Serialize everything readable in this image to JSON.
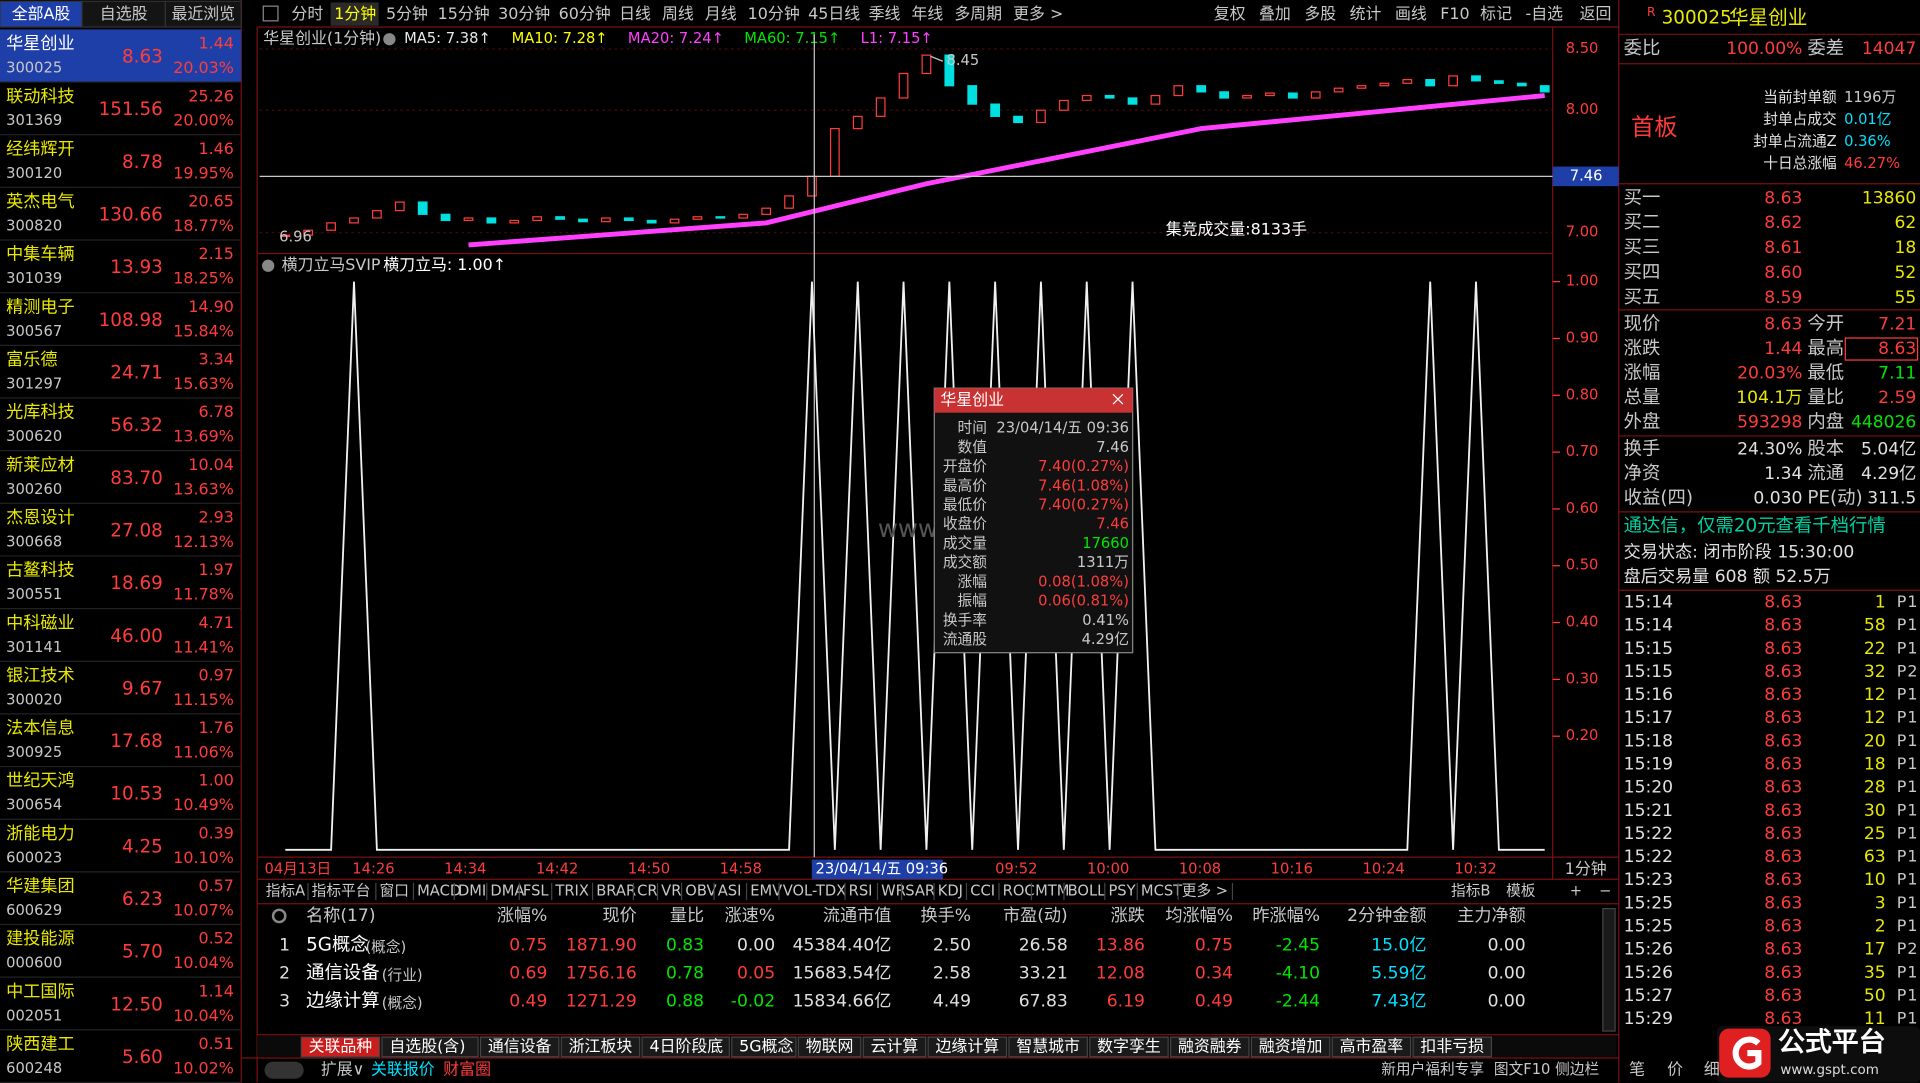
{
  "stock_list": {
    "tabs": [
      "全部A股",
      "自选股",
      "最近浏览"
    ],
    "rows": [
      {
        "name": "华星创业",
        "code": "300025",
        "price": "8.63",
        "change": "1.44",
        "pct": "20.03%"
      },
      {
        "name": "联动科技",
        "code": "301369",
        "price": "151.56",
        "change": "25.26",
        "pct": "20.00%"
      },
      {
        "name": "经纬辉开",
        "code": "300120",
        "price": "8.78",
        "change": "1.46",
        "pct": "19.95%"
      },
      {
        "name": "英杰电气",
        "code": "300820",
        "price": "130.66",
        "change": "20.65",
        "pct": "18.77%"
      },
      {
        "name": "中集车辆",
        "code": "301039",
        "price": "13.93",
        "change": "2.15",
        "pct": "18.25%"
      },
      {
        "name": "精测电子",
        "code": "300567",
        "price": "108.98",
        "change": "14.90",
        "pct": "15.84%"
      },
      {
        "name": "富乐德",
        "code": "301297",
        "price": "24.71",
        "change": "3.34",
        "pct": "15.63%"
      },
      {
        "name": "光库科技",
        "code": "300620",
        "price": "56.32",
        "change": "6.78",
        "pct": "13.69%"
      },
      {
        "name": "新莱应材",
        "code": "300260",
        "price": "83.70",
        "change": "10.04",
        "pct": "13.63%"
      },
      {
        "name": "杰恩设计",
        "code": "300668",
        "price": "27.08",
        "change": "2.93",
        "pct": "12.13%"
      },
      {
        "name": "古鳌科技",
        "code": "300551",
        "price": "18.69",
        "change": "1.97",
        "pct": "11.78%"
      },
      {
        "name": "中科磁业",
        "code": "301141",
        "price": "46.00",
        "change": "4.71",
        "pct": "11.41%"
      },
      {
        "name": "银江技术",
        "code": "300020",
        "price": "9.67",
        "change": "0.97",
        "pct": "11.15%"
      },
      {
        "name": "法本信息",
        "code": "300925",
        "price": "17.68",
        "change": "1.76",
        "pct": "11.06%"
      },
      {
        "name": "世纪天鸿",
        "code": "300654",
        "price": "10.53",
        "change": "1.00",
        "pct": "10.49%"
      },
      {
        "name": "浙能电力",
        "code": "600023",
        "price": "4.25",
        "change": "0.39",
        "pct": "10.10%"
      },
      {
        "name": "华建集团",
        "code": "600629",
        "price": "6.23",
        "change": "0.57",
        "pct": "10.07%"
      },
      {
        "name": "建投能源",
        "code": "000600",
        "price": "5.70",
        "change": "0.52",
        "pct": "10.04%"
      },
      {
        "name": "中工国际",
        "code": "002051",
        "price": "12.50",
        "change": "1.14",
        "pct": "10.04%"
      },
      {
        "name": "陕西建工",
        "code": "600248",
        "price": "5.60",
        "change": "0.51",
        "pct": "10.02%"
      }
    ]
  },
  "toolbar": {
    "periods": [
      "分时",
      "1分钟",
      "5分钟",
      "15分钟",
      "30分钟",
      "60分钟",
      "日线",
      "周线",
      "月线",
      "10分钟",
      "45日线",
      "季线",
      "年线",
      "多周期",
      "更多 >"
    ],
    "tools": [
      "复权",
      "叠加",
      "多股",
      "统计",
      "画线",
      "F10",
      "标记",
      "-自选",
      "返回"
    ]
  },
  "price_chart": {
    "title": "华星创业(1分钟)",
    "indicators": [
      {
        "text": "MA5: 7.38↑",
        "color": "#e8e8e8"
      },
      {
        "text": "MA10: 7.28↑",
        "color": "#ffff00"
      },
      {
        "text": "MA20: 7.24↑",
        "color": "#ff40ff"
      },
      {
        "text": "MA60: 7.15↑",
        "color": "#00e600"
      },
      {
        "text": "L1: 7.15↑",
        "color": "#ff40ff"
      }
    ],
    "ylim": [
      6.85,
      8.62
    ],
    "yticks": [
      {
        "value": 7,
        "label": "7.00"
      },
      {
        "value": 8,
        "label": "8.00"
      },
      {
        "value": 8.5,
        "label": "8.50"
      }
    ],
    "closes": [
      6.98,
      7.02,
      7.08,
      7.12,
      7.18,
      7.25,
      7.15,
      7.1,
      7.12,
      7.08,
      7.1,
      7.13,
      7.11,
      7.09,
      7.12,
      7.1,
      7.08,
      7.11,
      7.13,
      7.12,
      7.15,
      7.2,
      7.3,
      7.46,
      7.85,
      7.95,
      8.1,
      8.3,
      8.45,
      8.2,
      8.05,
      7.95,
      7.9,
      8.0,
      8.08,
      8.12,
      8.1,
      8.05,
      8.12,
      8.2,
      8.15,
      8.1,
      8.12,
      8.14,
      8.1,
      8.15,
      8.18,
      8.2,
      8.22,
      8.25,
      8.2,
      8.28,
      8.24,
      8.22,
      8.2,
      8.15
    ],
    "l1": {
      "x": [
        8,
        21,
        28,
        40,
        55
      ],
      "values": [
        6.9,
        7.08,
        7.4,
        7.85,
        8.12
      ]
    },
    "high_label": "8.45",
    "low_label": "6.96",
    "auction_volume": "集竞成交量:8133手",
    "crosshair_price": 7.46
  },
  "indicator_chart": {
    "name": "横刀立马SVIP",
    "value_text": "横刀立马: 1.00↑",
    "ylim": [
      0,
      1
    ],
    "yticks": [
      {
        "value": 0.2,
        "label": "0.20"
      },
      {
        "value": 0.3,
        "label": "0.30"
      },
      {
        "value": 0.4,
        "label": "0.40"
      },
      {
        "value": 0.5,
        "label": "0.50"
      },
      {
        "value": 0.6,
        "label": "0.60"
      },
      {
        "value": 0.7,
        "label": "0.70"
      },
      {
        "value": 0.8,
        "label": "0.80"
      },
      {
        "value": 0.9,
        "label": "0.90"
      },
      {
        "value": 1,
        "label": "1.00"
      }
    ],
    "values": [
      0,
      0,
      0,
      1,
      0,
      0,
      0,
      0,
      0,
      0,
      0,
      0,
      0,
      0,
      0,
      0,
      0,
      0,
      0,
      0,
      0,
      0,
      0,
      1,
      0,
      1,
      0,
      1,
      0,
      1,
      0,
      1,
      0,
      1,
      0,
      1,
      0,
      1,
      0,
      0,
      0,
      0,
      0,
      0,
      0,
      0,
      0,
      0,
      0,
      0,
      1,
      0,
      1,
      0,
      0,
      0
    ]
  },
  "time_axis": {
    "labels": [
      "04月13日",
      "14:26",
      "14:34",
      "14:42",
      "14:50",
      "14:58",
      "23/04/14/五 09:36",
      "09:52",
      "10:00",
      "10:08",
      "10:16",
      "10:24",
      "10:32"
    ],
    "period": "1分钟"
  },
  "tooltip": {
    "title": "华星创业",
    "rows": [
      {
        "label": "时间",
        "value": "23/04/14/五 09:36"
      },
      {
        "label": "数值",
        "value": "7.46"
      },
      {
        "label": "开盘价",
        "value": "7.40(0.27%)"
      },
      {
        "label": "最高价",
        "value": "7.46(1.08%)"
      },
      {
        "label": "最低价",
        "value": "7.40(0.27%)"
      },
      {
        "label": "收盘价",
        "value": "7.46"
      },
      {
        "label": "成交量",
        "value": "17660"
      },
      {
        "label": "成交额",
        "value": "1311万"
      },
      {
        "label": "涨幅",
        "value": "0.08(1.08%)"
      },
      {
        "label": "振幅",
        "value": "0.06(0.81%)"
      },
      {
        "label": "换手率",
        "value": "0.41%"
      },
      {
        "label": "流通股",
        "value": "4.29亿"
      }
    ]
  },
  "watermark": "www.gspt.com",
  "indicator_tabs": {
    "left": [
      "指标A",
      "指标平台",
      "窗口",
      "MACD",
      "DMI",
      "DMA",
      "FSL",
      "TRIX",
      "BRAR",
      "CR",
      "VR",
      "OBV",
      "ASI",
      "EMV",
      "VOL-TDX",
      "RSI",
      "WR",
      "SAR",
      "KDJ",
      "CCI",
      "ROC",
      "MTM",
      "BOLL",
      "PSY",
      "MCST",
      "更多 >"
    ],
    "right": [
      "指标B",
      "模板",
      "+",
      "−"
    ]
  },
  "table": {
    "columns": [
      "名称(17)",
      "涨幅%",
      "现价",
      "量比",
      "涨速%",
      "流通市值",
      "换手%",
      "市盈(动)",
      "涨跌",
      "均涨幅%",
      "昨涨幅%",
      "2分钟金额",
      "主力净额"
    ],
    "rows": [
      {
        "index": 1,
        "name": "5G概念",
        "tag": "(概念)",
        "cells": [
          "0.75",
          "1871.90",
          "0.83",
          "0.00",
          "45384.40亿",
          "2.50",
          "26.58",
          "13.86",
          "0.75",
          "-2.45",
          "15.0亿",
          "0.00"
        ]
      },
      {
        "index": 2,
        "name": "通信设备",
        "tag": "(行业)",
        "cells": [
          "0.69",
          "1756.16",
          "0.78",
          "0.05",
          "15683.54亿",
          "2.58",
          "33.21",
          "12.08",
          "0.34",
          "-4.10",
          "5.59亿",
          "0.00"
        ]
      },
      {
        "index": 3,
        "name": "边缘计算",
        "tag": "(概念)",
        "cells": [
          "0.49",
          "1271.29",
          "0.88",
          "-0.02",
          "15834.66亿",
          "4.49",
          "67.83",
          "6.19",
          "0.49",
          "-2.44",
          "7.43亿",
          "0.00"
        ]
      }
    ]
  },
  "sector_tabs": [
    "关联品种",
    "自选股(含)",
    "通信设备",
    "浙江板块",
    "4日阶段底",
    "5G概念",
    "物联网",
    "云计算",
    "边缘计算",
    "智慧城市",
    "数字孪生",
    "融资融券",
    "融资增加",
    "高市盈率",
    "扣非亏损"
  ],
  "status_bar": {
    "left": [
      "扩展∨",
      "关联报价",
      "财富圈"
    ],
    "right": [
      "新用户福利专享",
      "图文F10",
      "侧边栏"
    ]
  },
  "quote_panel": {
    "flag": "R",
    "code": "300025",
    "name": "华星创业",
    "order_ratio": {
      "label": "委比",
      "value": "100.00%",
      "diff_label": "委差",
      "diff": "14047"
    },
    "board": "首板",
    "seal": [
      {
        "label": "当前封单额",
        "value": "1196万"
      },
      {
        "label": "封单占成交",
        "value": "0.01亿"
      },
      {
        "label": "封单占流通Z",
        "value": "0.36%"
      },
      {
        "label": "十日总涨幅",
        "value": "46.27%"
      }
    ],
    "bids": [
      {
        "label": "买一",
        "price": "8.63",
        "volume": "13860"
      },
      {
        "label": "买二",
        "price": "8.62",
        "volume": "62"
      },
      {
        "label": "买三",
        "price": "8.61",
        "volume": "18"
      },
      {
        "label": "买四",
        "price": "8.60",
        "volume": "52"
      },
      {
        "label": "买五",
        "price": "8.59",
        "volume": "55"
      }
    ],
    "stats": [
      {
        "l1": "现价",
        "v1": "8.63",
        "l2": "今开",
        "v2": "7.21"
      },
      {
        "l1": "涨跌",
        "v1": "1.44",
        "l2": "最高",
        "v2": "8.63"
      },
      {
        "l1": "涨幅",
        "v1": "20.03%",
        "l2": "最低",
        "v2": "7.11"
      },
      {
        "l1": "总量",
        "v1": "104.1万",
        "l2": "量比",
        "v2": "2.59"
      },
      {
        "l1": "外盘",
        "v1": "593298",
        "l2": "内盘",
        "v2": "448026"
      },
      {
        "l1": "换手",
        "v1": "24.30%",
        "l2": "股本",
        "v2": "5.04亿"
      },
      {
        "l1": "净资",
        "v1": "1.34",
        "l2": "流通",
        "v2": "4.29亿"
      },
      {
        "l1": "收益(四)",
        "v1": "0.030",
        "l2": "PE(动)",
        "v2": "311.5"
      }
    ],
    "promo": "通达信，仅需20元查看千档行情",
    "status": "交易状态: 闭市阶段 15:30:00",
    "after_hours": "盘后交易量 608 额 52.5万",
    "ticks": [
      {
        "time": "15:14",
        "price": "8.63",
        "volume": "1",
        "flag": "P",
        "count": "1"
      },
      {
        "time": "15:14",
        "price": "8.63",
        "volume": "58",
        "flag": "P",
        "count": "1"
      },
      {
        "time": "15:15",
        "price": "8.63",
        "volume": "22",
        "flag": "P",
        "count": "1"
      },
      {
        "time": "15:15",
        "price": "8.63",
        "volume": "32",
        "flag": "P",
        "count": "2"
      },
      {
        "time": "15:16",
        "price": "8.63",
        "volume": "12",
        "flag": "P",
        "count": "1"
      },
      {
        "time": "15:17",
        "price": "8.63",
        "volume": "12",
        "flag": "P",
        "count": "1"
      },
      {
        "time": "15:18",
        "price": "8.63",
        "volume": "20",
        "flag": "P",
        "count": "1"
      },
      {
        "time": "15:19",
        "price": "8.63",
        "volume": "18",
        "flag": "P",
        "count": "1"
      },
      {
        "time": "15:20",
        "price": "8.63",
        "volume": "28",
        "flag": "P",
        "count": "1"
      },
      {
        "time": "15:21",
        "price": "8.63",
        "volume": "30",
        "flag": "P",
        "count": "1"
      },
      {
        "time": "15:22",
        "price": "8.63",
        "volume": "25",
        "flag": "P",
        "count": "1"
      },
      {
        "time": "15:22",
        "price": "8.63",
        "volume": "63",
        "flag": "P",
        "count": "1"
      },
      {
        "time": "15:23",
        "price": "8.63",
        "volume": "10",
        "flag": "P",
        "count": "1"
      },
      {
        "time": "15:25",
        "price": "8.63",
        "volume": "3",
        "flag": "P",
        "count": "1"
      },
      {
        "time": "15:25",
        "price": "8.63",
        "volume": "2",
        "flag": "P",
        "count": "1"
      },
      {
        "time": "15:26",
        "price": "8.63",
        "volume": "17",
        "flag": "P",
        "count": "2"
      },
      {
        "time": "15:26",
        "price": "8.63",
        "volume": "35",
        "flag": "P",
        "count": "1"
      },
      {
        "time": "15:27",
        "price": "8.63",
        "volume": "50",
        "flag": "P",
        "count": "1"
      },
      {
        "time": "15:29",
        "price": "8.63",
        "volume": "11",
        "flag": "P",
        "count": "1"
      }
    ],
    "tabs": [
      "笔",
      "价",
      "细"
    ]
  },
  "logo": {
    "name": "公式平台",
    "url": "www.gspt.com"
  }
}
